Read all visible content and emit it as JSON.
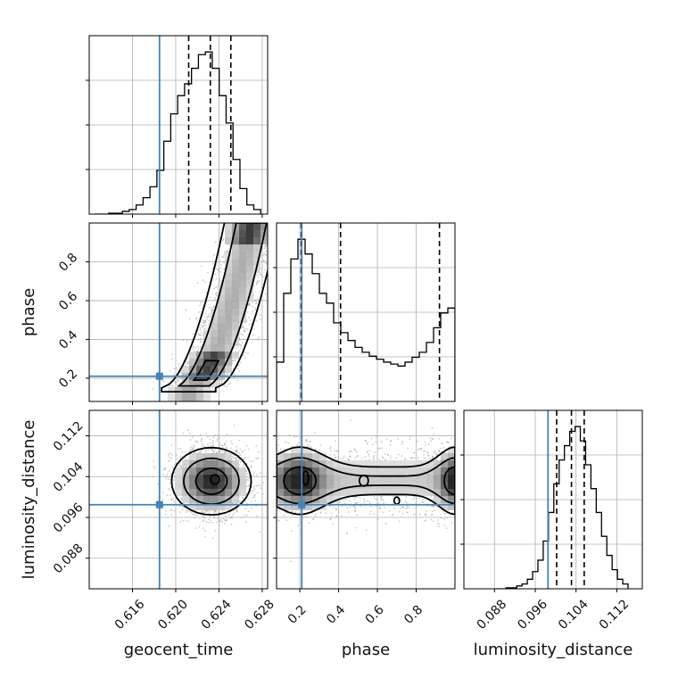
{
  "chart_data": {
    "type": "corner",
    "parameters": [
      {
        "name": "geocent_time",
        "label": "geocent_time",
        "range": [
          0.612,
          0.6285
        ],
        "truth": 0.6185,
        "ticks": [
          0.616,
          0.62,
          0.624,
          0.628
        ],
        "tick_labels": [
          "0.616",
          "0.620",
          "0.624",
          "0.628"
        ],
        "quantiles": [
          0.6212,
          0.6232,
          0.6251
        ]
      },
      {
        "name": "phase",
        "label": "phase",
        "range": [
          0.08,
          1.0
        ],
        "truth": 0.21,
        "ticks": [
          0.2,
          0.4,
          0.6,
          0.8
        ],
        "tick_labels": [
          "0.2",
          "0.4",
          "0.6",
          "0.8"
        ],
        "quantiles": [
          0.207,
          0.41,
          0.92
        ]
      },
      {
        "name": "luminosity_distance",
        "label": "luminosity_distance",
        "range": [
          0.082,
          0.117
        ],
        "truth": 0.0985,
        "ticks": [
          0.088,
          0.096,
          0.104,
          0.112
        ],
        "tick_labels": [
          "0.088",
          "0.096",
          "0.104",
          "0.112"
        ],
        "quantiles": [
          0.1002,
          0.1031,
          0.1056
        ]
      }
    ],
    "histograms": [
      {
        "param": "geocent_time",
        "bin_width": 0.00064,
        "bin_left": [
          0.6125,
          0.61314,
          0.61378,
          0.61442,
          0.61506,
          0.6157,
          0.61634,
          0.61698,
          0.61762,
          0.61826,
          0.6189,
          0.61954,
          0.62018,
          0.62082,
          0.62146,
          0.6221,
          0.62274,
          0.62338,
          0.62402,
          0.62466,
          0.6253,
          0.62594,
          0.62658,
          0.62722
        ],
        "counts": [
          0,
          0,
          1,
          1,
          3,
          5,
          10,
          18,
          30,
          48,
          80,
          110,
          130,
          143,
          160,
          175,
          178,
          160,
          130,
          100,
          60,
          28,
          10,
          5
        ]
      },
      {
        "param": "phase",
        "bin_width": 0.0368,
        "bin_left": [
          0.08,
          0.1168,
          0.1536,
          0.1904,
          0.2272,
          0.264,
          0.3008,
          0.3376,
          0.3744,
          0.4112,
          0.448,
          0.4848,
          0.5216,
          0.5584,
          0.5952,
          0.632,
          0.6688,
          0.7056,
          0.7424,
          0.7792,
          0.816,
          0.8528,
          0.8896,
          0.9264,
          0.9632
        ],
        "counts": [
          40,
          110,
          145,
          165,
          150,
          130,
          110,
          100,
          80,
          70,
          62,
          55,
          50,
          46,
          43,
          40,
          38,
          36,
          40,
          45,
          50,
          60,
          75,
          90,
          95
        ]
      },
      {
        "param": "luminosity_distance",
        "bin_width": 0.00104,
        "bin_left": [
          0.0882,
          0.08924,
          0.09028,
          0.09132,
          0.09236,
          0.0934,
          0.09444,
          0.09548,
          0.09652,
          0.09756,
          0.0986,
          0.09964,
          0.10068,
          0.10172,
          0.10276,
          0.1038,
          0.10484,
          0.10588,
          0.10692,
          0.10796,
          0.109,
          0.11004,
          0.11108,
          0.11212,
          0.11316
        ],
        "counts": [
          0,
          0,
          1,
          1,
          3,
          5,
          10,
          18,
          30,
          50,
          80,
          110,
          135,
          150,
          165,
          170,
          155,
          130,
          105,
          80,
          55,
          35,
          20,
          10,
          5
        ]
      }
    ],
    "scatter_panels": [
      {
        "x": "geocent_time",
        "y": "phase",
        "mode": {
          "x": 0.6255,
          "y": 0.96
        }
      },
      {
        "x": "geocent_time",
        "y": "luminosity_distance",
        "mode": {
          "x": 0.6238,
          "y": 0.1033
        }
      },
      {
        "x": "phase",
        "y": "luminosity_distance",
        "mode": {
          "x": 0.23,
          "y": 0.1035
        }
      }
    ],
    "truth_color": "#4682b4",
    "contour_color": "#000000",
    "grid": true
  }
}
